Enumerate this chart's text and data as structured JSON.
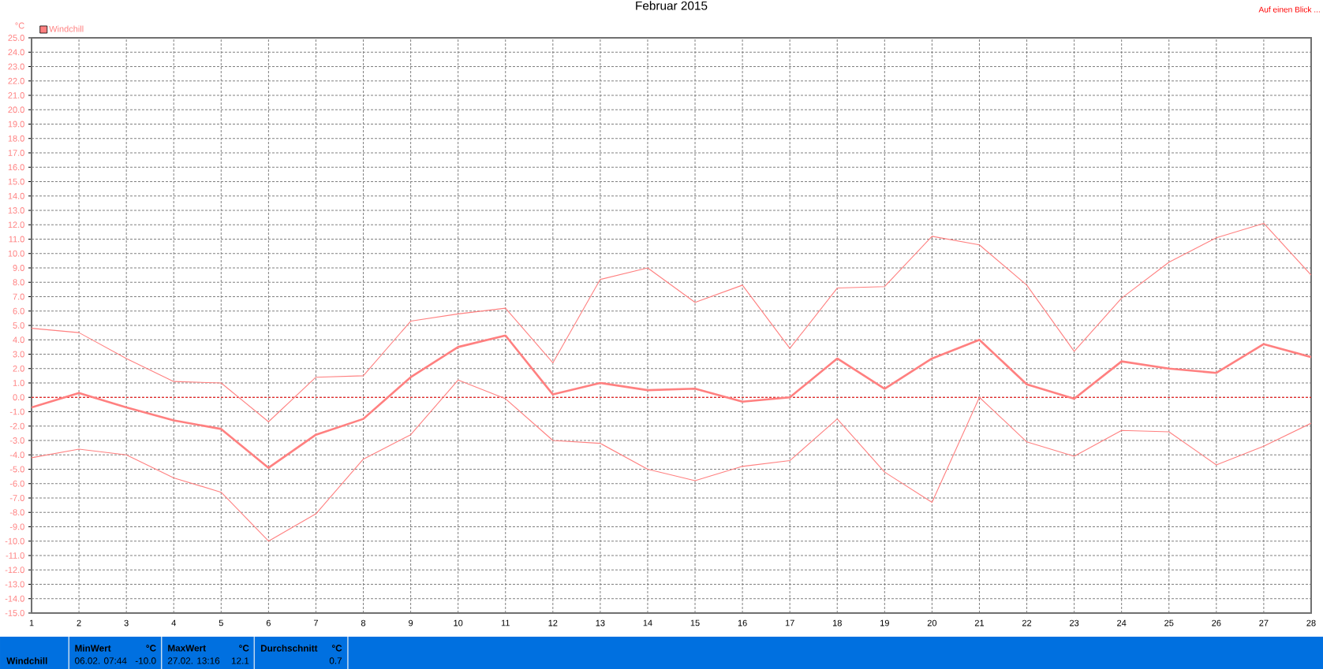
{
  "chart_data": {
    "type": "line",
    "title": "Februar 2015",
    "ylabel": "°C",
    "x": [
      1,
      2,
      3,
      4,
      5,
      6,
      7,
      8,
      9,
      10,
      11,
      12,
      13,
      14,
      15,
      16,
      17,
      18,
      19,
      20,
      21,
      22,
      23,
      24,
      25,
      26,
      27,
      28
    ],
    "series": [
      {
        "name": "Windchill",
        "color": "#ff8080",
        "values": [
          -0.7,
          0.3,
          -0.7,
          -1.6,
          -2.2,
          -4.9,
          -2.6,
          -1.5,
          1.4,
          3.5,
          4.3,
          0.2,
          1.0,
          0.5,
          0.6,
          -0.3,
          0.0,
          2.7,
          0.6,
          2.7,
          4.0,
          0.9,
          -0.1,
          2.5,
          2.0,
          1.7,
          3.7,
          2.8
        ]
      },
      {
        "color": "#ff8080",
        "values": [
          4.8,
          4.5,
          2.7,
          1.1,
          1.0,
          -1.7,
          1.4,
          1.5,
          5.3,
          5.8,
          6.2,
          2.4,
          8.2,
          9.0,
          6.6,
          7.8,
          3.4,
          7.6,
          7.7,
          11.2,
          10.6,
          7.8,
          3.2,
          6.9,
          9.4,
          11.1,
          12.1,
          8.5
        ]
      },
      {
        "color": "#ff8080",
        "values": [
          -4.2,
          -3.6,
          -4.0,
          -5.6,
          -6.6,
          -10.0,
          -8.1,
          -4.3,
          -2.6,
          1.2,
          -0.1,
          -3.0,
          -3.2,
          -5.0,
          -5.8,
          -4.8,
          -4.4,
          -1.5,
          -5.2,
          -7.3,
          0.0,
          -3.1,
          -4.1,
          -2.3,
          -2.4,
          -4.7,
          -3.4,
          -1.8
        ]
      }
    ],
    "xlim": [
      1,
      28
    ],
    "xticks": [
      1,
      2,
      3,
      4,
      5,
      6,
      7,
      8,
      9,
      10,
      11,
      12,
      13,
      14,
      15,
      16,
      17,
      18,
      19,
      20,
      21,
      22,
      23,
      24,
      25,
      26,
      27,
      28
    ],
    "ylim": [
      -15,
      25
    ],
    "yticks": [
      {
        "value": -15,
        "label": "-15.0"
      },
      {
        "value": -14,
        "label": "-14.0"
      },
      {
        "value": -13,
        "label": "-13.0"
      },
      {
        "value": -12,
        "label": "-12.0"
      },
      {
        "value": -11,
        "label": "-11.0"
      },
      {
        "value": -10,
        "label": "-10.0"
      },
      {
        "value": -9,
        "label": "-9.0"
      },
      {
        "value": -8,
        "label": "-8.0"
      },
      {
        "value": -7,
        "label": "-7.0"
      },
      {
        "value": -6,
        "label": "-6.0"
      },
      {
        "value": -5,
        "label": "-5.0"
      },
      {
        "value": -4,
        "label": "-4.0"
      },
      {
        "value": -3,
        "label": "-3.0"
      },
      {
        "value": -2,
        "label": "-2.0"
      },
      {
        "value": -1,
        "label": "-1.0"
      },
      {
        "value": 0,
        "label": "0.0"
      },
      {
        "value": 1,
        "label": "1.0"
      },
      {
        "value": 2,
        "label": "2.0"
      },
      {
        "value": 3,
        "label": "3.0"
      },
      {
        "value": 4,
        "label": "4.0"
      },
      {
        "value": 5,
        "label": "5.0"
      },
      {
        "value": 6,
        "label": "6.0"
      },
      {
        "value": 7,
        "label": "7.0"
      },
      {
        "value": 8,
        "label": "8.0"
      },
      {
        "value": 9,
        "label": "9.0"
      },
      {
        "value": 10,
        "label": "10.0"
      },
      {
        "value": 11,
        "label": "11.0"
      },
      {
        "value": 12,
        "label": "12.0"
      },
      {
        "value": 13,
        "label": "13.0"
      },
      {
        "value": 14,
        "label": "14.0"
      },
      {
        "value": 15,
        "label": "15.0"
      },
      {
        "value": 16,
        "label": "16.0"
      },
      {
        "value": 17,
        "label": "17.0"
      },
      {
        "value": 18,
        "label": "18.0"
      },
      {
        "value": 19,
        "label": "19.0"
      },
      {
        "value": 20,
        "label": "20.0"
      },
      {
        "value": 21,
        "label": "21.0"
      },
      {
        "value": 22,
        "label": "22.0"
      },
      {
        "value": 23,
        "label": "23.0"
      },
      {
        "value": 24,
        "label": "24.0"
      },
      {
        "value": 25,
        "label": "25.0"
      }
    ],
    "grid": true,
    "legend": "top left",
    "ref_lines": [
      {
        "axis": "y",
        "value": 0,
        "color": "#ff0000",
        "line_style": "dashed"
      }
    ],
    "annotations": [
      "Auf einen Blick ...",
      "Windchill",
      "MinWert",
      "°C",
      "06.02. 07:44",
      "-10.0",
      "MaxWert",
      "°C",
      "27.02. 13:16",
      "12.1",
      "Durchschnitt",
      "°C",
      "0.7"
    ]
  }
}
